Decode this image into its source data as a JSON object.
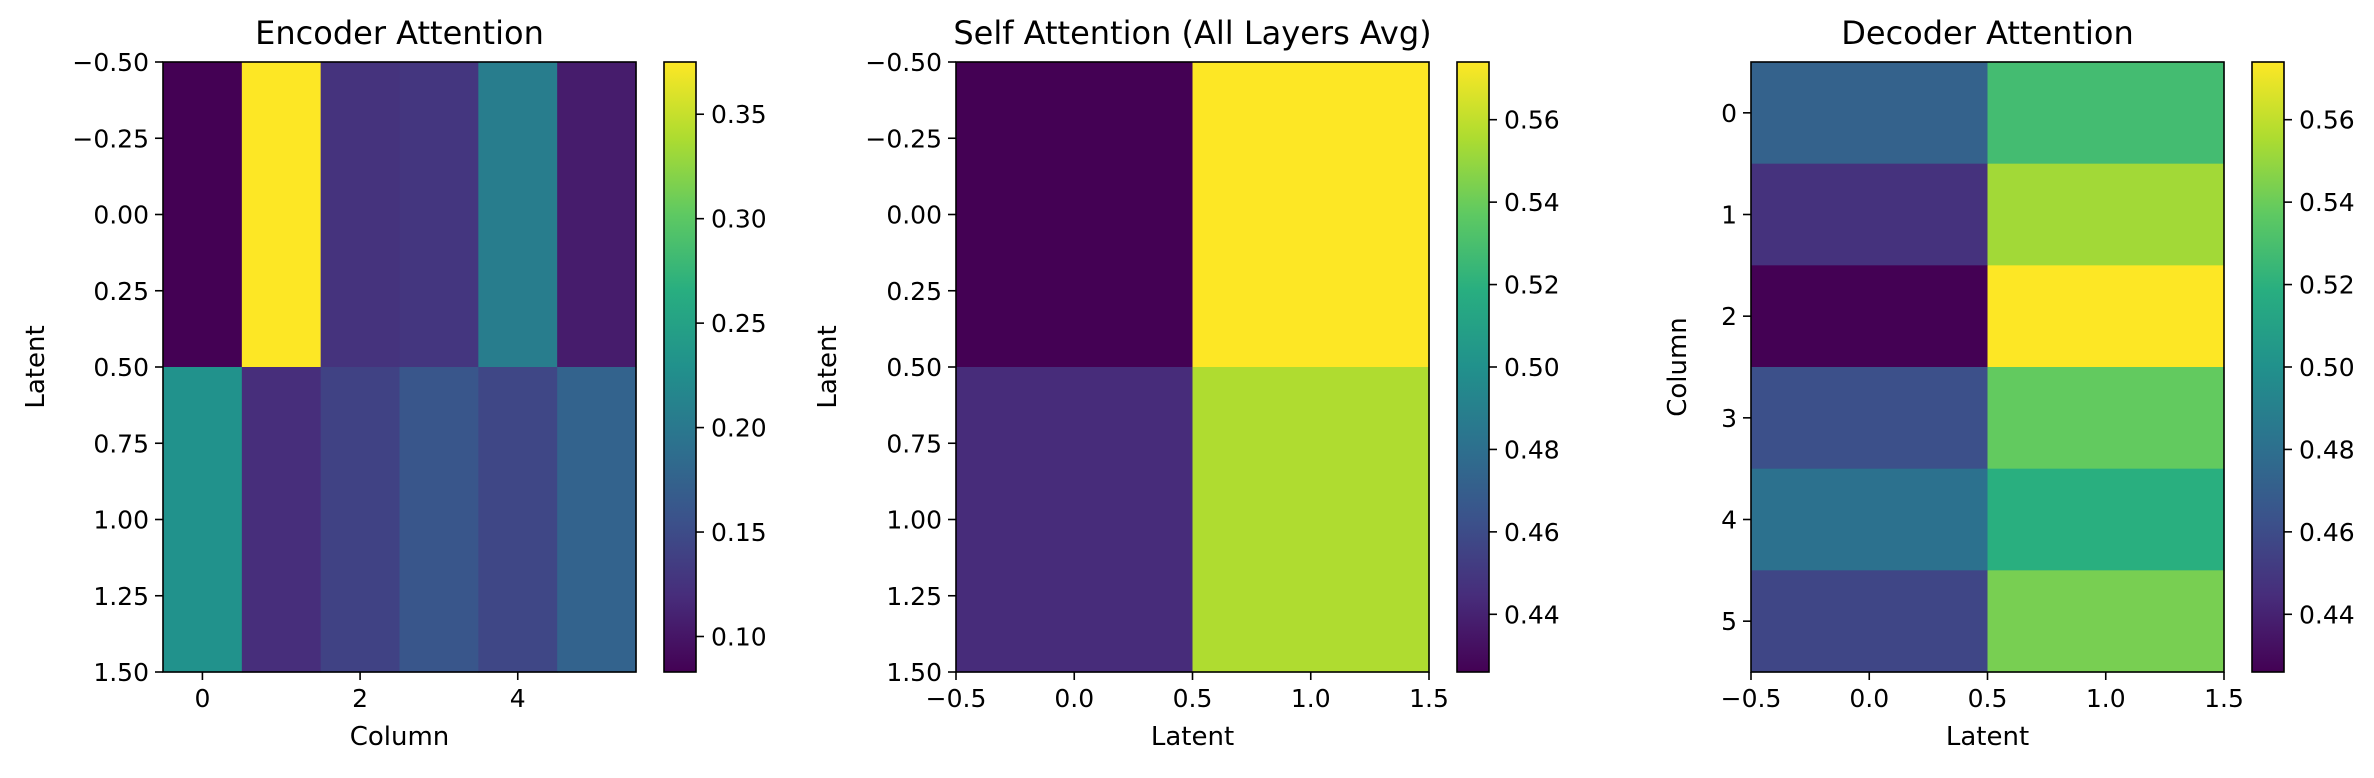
{
  "chart_data": [
    {
      "type": "heatmap",
      "title": "Encoder Attention",
      "xlabel": "Column",
      "ylabel": "Latent",
      "colormap": "viridis",
      "xlim": [
        -0.5,
        5.5
      ],
      "ylim": [
        1.5,
        -0.5
      ],
      "xticks": [
        0,
        2,
        4
      ],
      "xtick_labels": [
        "0",
        "2",
        "4"
      ],
      "yticks": [
        -0.5,
        -0.25,
        0.0,
        0.25,
        0.5,
        0.75,
        1.0,
        1.25,
        1.5
      ],
      "ytick_labels": [
        "−0.50",
        "−0.25",
        "0.00",
        "0.25",
        "0.50",
        "0.75",
        "1.00",
        "1.25",
        "1.50"
      ],
      "values": [
        [
          0.083,
          0.375,
          0.125,
          0.128,
          0.205,
          0.105
        ],
        [
          0.23,
          0.12,
          0.14,
          0.16,
          0.145,
          0.175
        ]
      ],
      "colorbar": {
        "vmin": 0.083,
        "vmax": 0.375,
        "ticks": [
          0.1,
          0.15,
          0.2,
          0.25,
          0.3,
          0.35
        ],
        "tick_labels": [
          "0.10",
          "0.15",
          "0.20",
          "0.25",
          "0.30",
          "0.35"
        ]
      }
    },
    {
      "type": "heatmap",
      "title": "Self Attention (All Layers Avg)",
      "xlabel": "Latent",
      "ylabel": "Latent",
      "colormap": "viridis",
      "xlim": [
        -0.5,
        1.5
      ],
      "ylim": [
        1.5,
        -0.5
      ],
      "xticks": [
        -0.5,
        0.0,
        0.5,
        1.0,
        1.5
      ],
      "xtick_labels": [
        "−0.5",
        "0.0",
        "0.5",
        "1.0",
        "1.5"
      ],
      "yticks": [
        -0.5,
        -0.25,
        0.0,
        0.25,
        0.5,
        0.75,
        1.0,
        1.25,
        1.5
      ],
      "ytick_labels": [
        "−0.50",
        "−0.25",
        "0.00",
        "0.25",
        "0.50",
        "0.75",
        "1.00",
        "1.25",
        "1.50"
      ],
      "values": [
        [
          0.426,
          0.574
        ],
        [
          0.444,
          0.556
        ]
      ],
      "colorbar": {
        "vmin": 0.426,
        "vmax": 0.574,
        "ticks": [
          0.44,
          0.46,
          0.48,
          0.5,
          0.52,
          0.54,
          0.56
        ],
        "tick_labels": [
          "0.44",
          "0.46",
          "0.48",
          "0.50",
          "0.52",
          "0.54",
          "0.56"
        ]
      }
    },
    {
      "type": "heatmap",
      "title": "Decoder Attention",
      "xlabel": "Latent",
      "ylabel": "Column",
      "colormap": "viridis",
      "xlim": [
        -0.5,
        1.5
      ],
      "ylim": [
        5.5,
        -0.5
      ],
      "xticks": [
        -0.5,
        0.0,
        0.5,
        1.0,
        1.5
      ],
      "xtick_labels": [
        "−0.5",
        "0.0",
        "0.5",
        "1.0",
        "1.5"
      ],
      "yticks": [
        0,
        1,
        2,
        3,
        4,
        5
      ],
      "ytick_labels": [
        "0",
        "1",
        "2",
        "3",
        "4",
        "5"
      ],
      "values": [
        [
          0.472,
          0.528
        ],
        [
          0.447,
          0.553
        ],
        [
          0.426,
          0.574
        ],
        [
          0.462,
          0.538
        ],
        [
          0.481,
          0.519
        ],
        [
          0.457,
          0.543
        ]
      ],
      "colorbar": {
        "vmin": 0.426,
        "vmax": 0.574,
        "ticks": [
          0.44,
          0.46,
          0.48,
          0.5,
          0.52,
          0.54,
          0.56
        ],
        "tick_labels": [
          "0.44",
          "0.46",
          "0.48",
          "0.50",
          "0.52",
          "0.54",
          "0.56"
        ]
      }
    }
  ]
}
